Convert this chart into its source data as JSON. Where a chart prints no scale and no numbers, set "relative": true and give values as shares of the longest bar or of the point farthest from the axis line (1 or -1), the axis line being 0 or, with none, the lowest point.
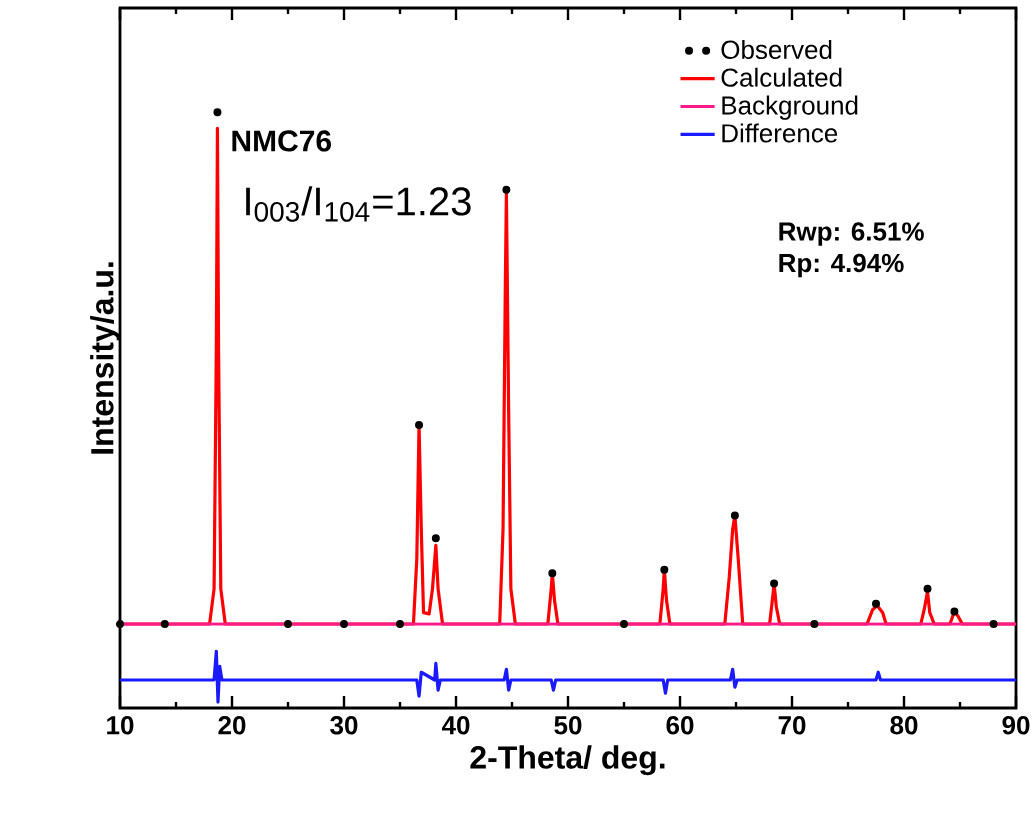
{
  "chart_data": {
    "type": "line",
    "relative": true,
    "xlabel": "2-Theta/ deg.",
    "ylabel": "Intensity/a.u.",
    "xlim": [
      10,
      90
    ],
    "xticks": [
      10,
      20,
      30,
      40,
      50,
      60,
      70,
      80,
      90
    ],
    "tick_labels": "x",
    "grid": false,
    "legend": "top right",
    "annotations": [
      "NMC76",
      "I$_{003}$/I$_{104}$=1.23",
      "Rwp: 6.51%",
      "Rp: 4.94%"
    ],
    "series": [
      {
        "name": "Observed",
        "type": "scatter",
        "marker": "circle",
        "color": "#000000",
        "x": [
          10,
          14,
          18.7,
          25,
          30,
          35,
          36.7,
          38.2,
          44.5,
          48.6,
          55,
          58.6,
          64.9,
          68.4,
          72,
          77.5,
          82.1,
          84.5,
          88
        ],
        "values": [
          0.141,
          0.141,
          1.0,
          0.141,
          0.141,
          0.141,
          0.475,
          0.285,
          0.87,
          0.226,
          0.141,
          0.232,
          0.323,
          0.209,
          0.141,
          0.175,
          0.2,
          0.162,
          0.141
        ]
      },
      {
        "name": "Calculated",
        "color": "#ff0000",
        "x": [
          10,
          18.0,
          18.4,
          18.6,
          18.7,
          18.8,
          19.0,
          19.4,
          36.2,
          36.5,
          36.7,
          36.9,
          37.1,
          37.6,
          37.9,
          38.2,
          38.4,
          38.8,
          43.9,
          44.2,
          44.4,
          44.5,
          44.7,
          44.9,
          45.3,
          48.2,
          48.5,
          48.6,
          48.8,
          49.1,
          58.2,
          58.5,
          58.6,
          58.8,
          59.1,
          64.0,
          64.4,
          64.7,
          64.9,
          65.2,
          65.6,
          68.0,
          68.3,
          68.4,
          68.6,
          68.9,
          76.7,
          77.2,
          77.6,
          78.1,
          78.4,
          81.5,
          81.8,
          82.1,
          82.3,
          82.7,
          84.1,
          84.5,
          84.8,
          85.2,
          90
        ],
        "values": [
          0.141,
          0.141,
          0.2,
          0.6,
          0.973,
          0.6,
          0.2,
          0.141,
          0.141,
          0.25,
          0.475,
          0.3,
          0.16,
          0.158,
          0.2,
          0.273,
          0.2,
          0.141,
          0.141,
          0.3,
          0.7,
          0.865,
          0.5,
          0.2,
          0.141,
          0.141,
          0.2,
          0.226,
          0.18,
          0.141,
          0.141,
          0.2,
          0.232,
          0.18,
          0.141,
          0.141,
          0.22,
          0.3,
          0.323,
          0.25,
          0.141,
          0.141,
          0.19,
          0.209,
          0.17,
          0.141,
          0.141,
          0.165,
          0.172,
          0.16,
          0.141,
          0.141,
          0.165,
          0.195,
          0.16,
          0.141,
          0.141,
          0.162,
          0.155,
          0.141,
          0.141
        ]
      },
      {
        "name": "Background",
        "color": "#ff1a8c",
        "x": [
          10,
          90
        ],
        "values": [
          0.141,
          0.141
        ]
      },
      {
        "name": "Difference",
        "color": "#1a1aff",
        "x": [
          10,
          18.4,
          18.6,
          18.75,
          18.9,
          19.1,
          36.5,
          36.7,
          36.9,
          38.1,
          38.2,
          38.4,
          38.6,
          44.3,
          44.5,
          44.7,
          44.9,
          48.5,
          48.7,
          48.9,
          58.5,
          58.7,
          58.9,
          64.5,
          64.7,
          64.9,
          65.1,
          77.5,
          77.7,
          77.9,
          90
        ],
        "values": [
          0.047,
          0.047,
          0.095,
          0.01,
          0.07,
          0.047,
          0.047,
          0.02,
          0.06,
          0.047,
          0.075,
          0.03,
          0.047,
          0.047,
          0.065,
          0.03,
          0.047,
          0.047,
          0.03,
          0.047,
          0.047,
          0.025,
          0.047,
          0.047,
          0.065,
          0.035,
          0.047,
          0.047,
          0.06,
          0.047,
          0.047
        ]
      }
    ]
  }
}
